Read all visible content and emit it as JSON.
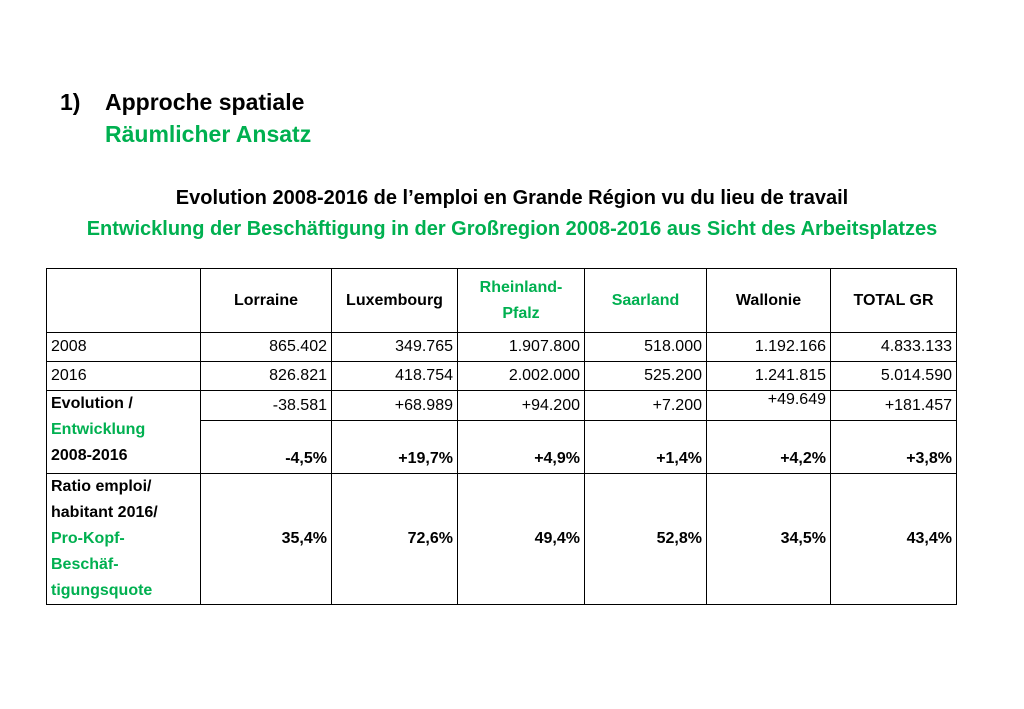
{
  "heading": {
    "number": "1)",
    "title_fr": "Approche spatiale",
    "title_de": "Räumlicher Ansatz"
  },
  "subtitle_fr": "Evolution 2008-2016 de l’emploi en Grande Région vu du lieu de travail",
  "subtitle_de": "Entwicklung der Beschäftigung in der Großregion 2008-2016 aus Sicht des Arbeitsplatzes",
  "colors": {
    "green": "#00b050",
    "text": "#000000"
  },
  "table": {
    "headers": [
      "Lorraine",
      "Luxembourg",
      "Rheinland-Pfalz",
      "Saarland",
      "Wallonie",
      "TOTAL GR"
    ],
    "rows": [
      {
        "label": "2008",
        "values": [
          "865.402",
          "349.765",
          "1.907.800",
          "518.000",
          "1.192.166",
          "4.833.133"
        ]
      },
      {
        "label": "2016",
        "values": [
          "826.821",
          "418.754",
          "2.002.000",
          "525.200",
          "1.241.815",
          "5.014.590"
        ]
      }
    ],
    "evolution": {
      "label_fr": "Evolution /",
      "label_de": "Entwicklung",
      "label_period": "2008-2016",
      "absolute": [
        "-38.581",
        "+68.989",
        "+94.200",
        "+7.200",
        "+49.649",
        "+181.457"
      ],
      "percent": [
        "-4,5%",
        "+19,7%",
        "+4,9%",
        "+1,4%",
        "+4,2%",
        "+3,8%"
      ]
    },
    "ratio": {
      "label_fr_1": "Ratio emploi/",
      "label_fr_2": "habitant 2016/",
      "label_de_1": "Pro-Kopf-",
      "label_de_2": "Beschäf-",
      "label_de_3": "tigungsquote",
      "values": [
        "35,4%",
        "72,6%",
        "49,4%",
        "52,8%",
        "34,5%",
        "43,4%"
      ]
    }
  }
}
